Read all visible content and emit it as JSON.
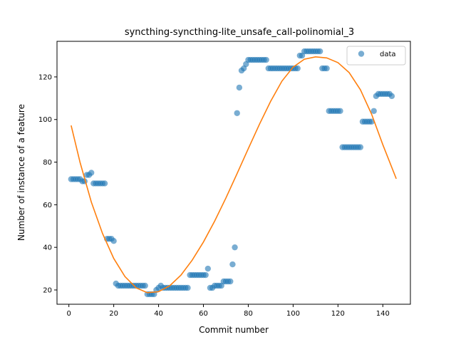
{
  "chart_data": {
    "type": "scatter",
    "title": "syncthing-syncthing-lite_unsafe_call-polinomial_3",
    "xlabel": "Commit number",
    "ylabel": "Number of instance of a feature",
    "xlim": [
      -5.3,
      152.3
    ],
    "ylim": [
      13.3,
      136.7
    ],
    "xticks": [
      0,
      20,
      40,
      60,
      80,
      100,
      120,
      140
    ],
    "yticks": [
      20,
      40,
      60,
      80,
      100,
      120
    ],
    "legend": {
      "placement": "top-right",
      "entries": [
        "data"
      ]
    },
    "colors": {
      "data": "#1f77b4",
      "fit": "#ff7f0e"
    },
    "series": [
      {
        "name": "data",
        "kind": "scatter",
        "points": [
          [
            1,
            72
          ],
          [
            2,
            72
          ],
          [
            3,
            72
          ],
          [
            4,
            72
          ],
          [
            5,
            72
          ],
          [
            6,
            71
          ],
          [
            7,
            71
          ],
          [
            8,
            74
          ],
          [
            9,
            74
          ],
          [
            10,
            75
          ],
          [
            11,
            70
          ],
          [
            12,
            70
          ],
          [
            13,
            70
          ],
          [
            14,
            70
          ],
          [
            15,
            70
          ],
          [
            16,
            70
          ],
          [
            17,
            44
          ],
          [
            18,
            44
          ],
          [
            19,
            44
          ],
          [
            20,
            43
          ],
          [
            21,
            23
          ],
          [
            22,
            22
          ],
          [
            23,
            22
          ],
          [
            24,
            22
          ],
          [
            25,
            22
          ],
          [
            26,
            22
          ],
          [
            27,
            22
          ],
          [
            28,
            22
          ],
          [
            29,
            22
          ],
          [
            30,
            22
          ],
          [
            31,
            22
          ],
          [
            32,
            22
          ],
          [
            33,
            22
          ],
          [
            34,
            22
          ],
          [
            35,
            18
          ],
          [
            36,
            18
          ],
          [
            37,
            18
          ],
          [
            38,
            18
          ],
          [
            39,
            20
          ],
          [
            40,
            21
          ],
          [
            41,
            22
          ],
          [
            42,
            21
          ],
          [
            43,
            21
          ],
          [
            44,
            21
          ],
          [
            45,
            21
          ],
          [
            46,
            21
          ],
          [
            47,
            21
          ],
          [
            48,
            21
          ],
          [
            49,
            21
          ],
          [
            50,
            21
          ],
          [
            51,
            21
          ],
          [
            52,
            21
          ],
          [
            53,
            21
          ],
          [
            54,
            27
          ],
          [
            55,
            27
          ],
          [
            56,
            27
          ],
          [
            57,
            27
          ],
          [
            58,
            27
          ],
          [
            59,
            27
          ],
          [
            60,
            27
          ],
          [
            61,
            27
          ],
          [
            62,
            30
          ],
          [
            63,
            21
          ],
          [
            64,
            21
          ],
          [
            65,
            22
          ],
          [
            66,
            22
          ],
          [
            67,
            22
          ],
          [
            68,
            22
          ],
          [
            69,
            24
          ],
          [
            70,
            24
          ],
          [
            71,
            24
          ],
          [
            72,
            24
          ],
          [
            73,
            32
          ],
          [
            74,
            40
          ],
          [
            75,
            103
          ],
          [
            76,
            115
          ],
          [
            77,
            123
          ],
          [
            78,
            124
          ],
          [
            79,
            126
          ],
          [
            80,
            128
          ],
          [
            81,
            128
          ],
          [
            82,
            128
          ],
          [
            83,
            128
          ],
          [
            84,
            128
          ],
          [
            85,
            128
          ],
          [
            86,
            128
          ],
          [
            87,
            128
          ],
          [
            88,
            128
          ],
          [
            89,
            124
          ],
          [
            90,
            124
          ],
          [
            91,
            124
          ],
          [
            92,
            124
          ],
          [
            93,
            124
          ],
          [
            94,
            124
          ],
          [
            95,
            124
          ],
          [
            96,
            124
          ],
          [
            97,
            124
          ],
          [
            98,
            124
          ],
          [
            99,
            124
          ],
          [
            100,
            124
          ],
          [
            101,
            124
          ],
          [
            102,
            124
          ],
          [
            103,
            130
          ],
          [
            104,
            130
          ],
          [
            105,
            132
          ],
          [
            106,
            132
          ],
          [
            107,
            132
          ],
          [
            108,
            132
          ],
          [
            109,
            132
          ],
          [
            110,
            132
          ],
          [
            111,
            132
          ],
          [
            112,
            132
          ],
          [
            113,
            124
          ],
          [
            114,
            124
          ],
          [
            115,
            124
          ],
          [
            116,
            104
          ],
          [
            117,
            104
          ],
          [
            118,
            104
          ],
          [
            119,
            104
          ],
          [
            120,
            104
          ],
          [
            121,
            104
          ],
          [
            122,
            87
          ],
          [
            123,
            87
          ],
          [
            124,
            87
          ],
          [
            125,
            87
          ],
          [
            126,
            87
          ],
          [
            127,
            87
          ],
          [
            128,
            87
          ],
          [
            129,
            87
          ],
          [
            130,
            87
          ],
          [
            131,
            99
          ],
          [
            132,
            99
          ],
          [
            133,
            99
          ],
          [
            134,
            99
          ],
          [
            135,
            99
          ],
          [
            136,
            104
          ],
          [
            137,
            111
          ],
          [
            138,
            112
          ],
          [
            139,
            112
          ],
          [
            140,
            112
          ],
          [
            141,
            112
          ],
          [
            142,
            112
          ],
          [
            143,
            112
          ],
          [
            144,
            111
          ]
        ]
      },
      {
        "kind": "line",
        "points": [
          [
            1,
            97.2
          ],
          [
            5,
            79.8
          ],
          [
            10,
            61.3
          ],
          [
            15,
            46.5
          ],
          [
            20,
            34.8
          ],
          [
            25,
            26.3
          ],
          [
            30,
            21.0
          ],
          [
            35,
            18.7
          ],
          [
            40,
            19.2
          ],
          [
            45,
            22.0
          ],
          [
            50,
            27.0
          ],
          [
            55,
            34.0
          ],
          [
            60,
            42.5
          ],
          [
            65,
            52.3
          ],
          [
            70,
            63.1
          ],
          [
            75,
            74.6
          ],
          [
            80,
            86.3
          ],
          [
            85,
            97.8
          ],
          [
            90,
            108.6
          ],
          [
            95,
            118.0
          ],
          [
            100,
            124.6
          ],
          [
            105,
            128.3
          ],
          [
            110,
            129.4
          ],
          [
            115,
            128.9
          ],
          [
            120,
            126.7
          ],
          [
            125,
            122.0
          ],
          [
            130,
            114.0
          ],
          [
            135,
            102.5
          ],
          [
            140,
            88.2
          ],
          [
            146,
            72.2
          ]
        ]
      }
    ]
  }
}
